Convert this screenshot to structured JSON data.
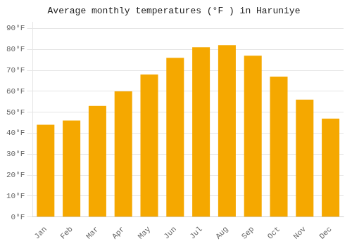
{
  "chart_data": {
    "type": "bar",
    "title": "Average monthly temperatures (°F ) in Haruniye",
    "categories": [
      "Jan",
      "Feb",
      "Mar",
      "Apr",
      "May",
      "Jun",
      "Jul",
      "Aug",
      "Sep",
      "Oct",
      "Nov",
      "Dec"
    ],
    "values": [
      44,
      46,
      53,
      60,
      68,
      76,
      81,
      82,
      77,
      67,
      56,
      47
    ],
    "color": "#F5A800",
    "ylim": [
      0,
      93
    ],
    "yticks": [
      {
        "value": 0,
        "label": "0°F"
      },
      {
        "value": 10,
        "label": "10°F"
      },
      {
        "value": 20,
        "label": "20°F"
      },
      {
        "value": 30,
        "label": "30°F"
      },
      {
        "value": 40,
        "label": "40°F"
      },
      {
        "value": 50,
        "label": "50°F"
      },
      {
        "value": 60,
        "label": "60°F"
      },
      {
        "value": 70,
        "label": "70°F"
      },
      {
        "value": 80,
        "label": "80°F"
      },
      {
        "value": 90,
        "label": "90°F"
      }
    ],
    "grid": true
  }
}
